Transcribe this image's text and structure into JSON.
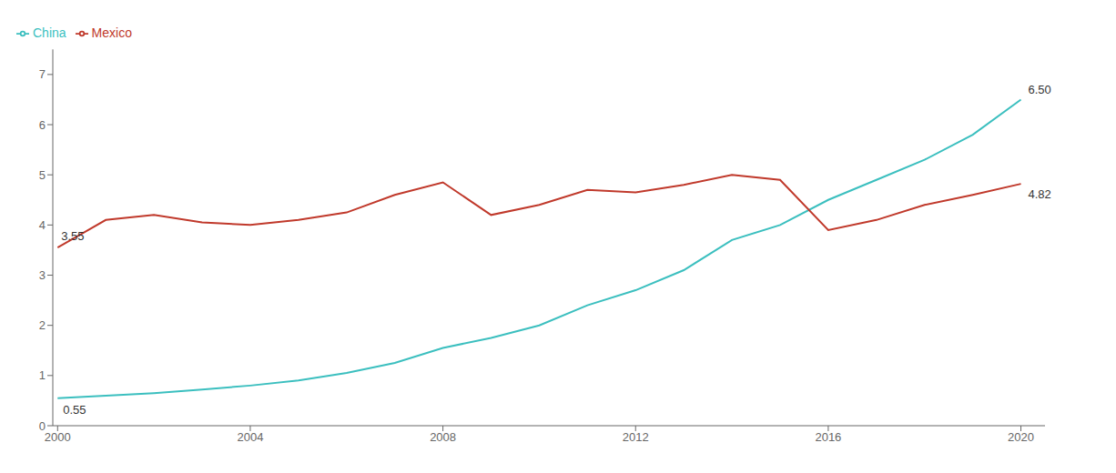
{
  "chart_data": {
    "type": "line",
    "x": [
      2000,
      2001,
      2002,
      2003,
      2004,
      2005,
      2006,
      2007,
      2008,
      2009,
      2010,
      2011,
      2012,
      2013,
      2014,
      2015,
      2016,
      2017,
      2018,
      2019,
      2020
    ],
    "series": [
      {
        "name": "China",
        "color": "#3bbfbf",
        "values": [
          0.55,
          0.6,
          0.65,
          0.72,
          0.8,
          0.9,
          1.05,
          1.25,
          1.55,
          1.75,
          2.0,
          2.4,
          2.7,
          3.1,
          3.7,
          4.0,
          4.5,
          4.9,
          5.3,
          5.8,
          6.5
        ]
      },
      {
        "name": "Mexico",
        "color": "#c0392b",
        "values": [
          3.55,
          4.1,
          4.2,
          4.05,
          4.0,
          4.1,
          4.25,
          4.6,
          4.85,
          4.2,
          4.4,
          4.7,
          4.65,
          4.8,
          5.0,
          4.9,
          3.9,
          4.1,
          4.4,
          4.6,
          4.82
        ]
      }
    ],
    "xlim": [
      1999.9,
      2020.5
    ],
    "xticks": [
      2000,
      2004,
      2008,
      2012,
      2016,
      2020
    ],
    "ylim": [
      0,
      7.5
    ],
    "yticks": [
      0,
      1,
      2,
      3,
      4,
      5,
      6,
      7
    ],
    "annotations": [
      {
        "text": "0.55",
        "x": 2000,
        "y": 0.55
      },
      {
        "text": "3.55",
        "x": 2000,
        "y": 3.55
      },
      {
        "text": "6.50",
        "x": 2020,
        "y": 6.5
      },
      {
        "text": "4.82",
        "x": 2020,
        "y": 4.82
      }
    ],
    "grid": false,
    "legend": "upper left"
  }
}
